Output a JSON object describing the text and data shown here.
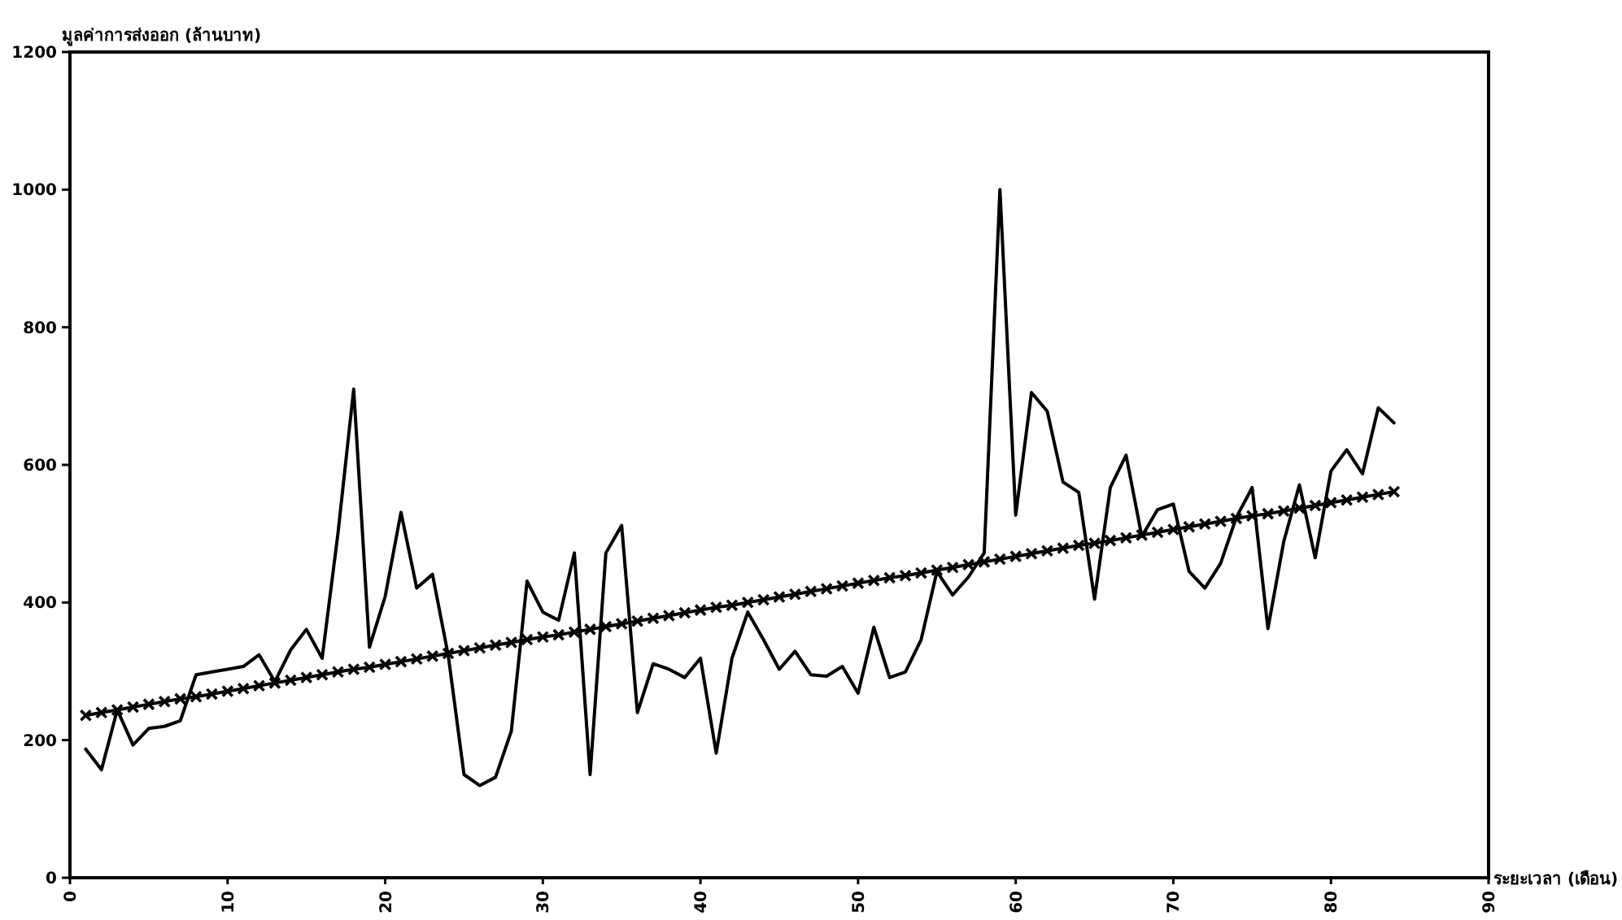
{
  "chart_data": {
    "type": "line",
    "xlabel": "ระยะเวลา (เดือน)",
    "ylabel": "มูลค่าการส่งออก (ล้านบาท)",
    "xlim": [
      0,
      90
    ],
    "xticks": [
      0,
      10,
      20,
      30,
      40,
      50,
      60,
      70,
      80,
      90
    ],
    "ylim": [
      0,
      1200
    ],
    "yticks": [
      0,
      200,
      400,
      600,
      800,
      1000,
      1200
    ],
    "grid": false,
    "series": [
      {
        "color": "#000000",
        "marker": "none",
        "x": [
          1,
          2,
          3,
          4,
          5,
          6,
          7,
          8,
          9,
          10,
          11,
          12,
          13,
          14,
          15,
          16,
          17,
          18,
          19,
          20,
          21,
          22,
          23,
          24,
          25,
          26,
          27,
          28,
          29,
          30,
          31,
          32,
          33,
          34,
          35,
          36,
          37,
          38,
          39,
          40,
          41,
          42,
          43,
          44,
          45,
          46,
          47,
          48,
          49,
          50,
          51,
          52,
          53,
          54,
          55,
          56,
          57,
          58,
          59,
          60,
          61,
          62,
          63,
          64,
          65,
          66,
          67,
          68,
          69,
          70,
          71,
          72,
          73,
          74,
          75,
          76,
          77,
          78,
          79,
          80,
          81,
          82,
          83,
          84
        ],
        "values": [
          187,
          157,
          244,
          193,
          217,
          220,
          228,
          295,
          299,
          303,
          307,
          324,
          285,
          331,
          361,
          319,
          500,
          710,
          335,
          409,
          531,
          421,
          441,
          323,
          150,
          134,
          146,
          213,
          431,
          386,
          374,
          472,
          150,
          472,
          512,
          240,
          311,
          303,
          291,
          319,
          181,
          319,
          386,
          346,
          303,
          329,
          295,
          293,
          307,
          268,
          364,
          291,
          299,
          346,
          445,
          411,
          437,
          472,
          1000,
          527,
          705,
          678,
          575,
          560,
          405,
          567,
          614,
          496,
          535,
          543,
          445,
          421,
          457,
          524,
          567,
          362,
          488,
          571,
          465,
          591,
          622,
          587,
          683,
          661
        ]
      },
      {
        "color": "#000000",
        "marker": "cross",
        "x": [
          1,
          2,
          3,
          4,
          5,
          6,
          7,
          8,
          9,
          10,
          11,
          12,
          13,
          14,
          15,
          16,
          17,
          18,
          19,
          20,
          21,
          22,
          23,
          24,
          25,
          26,
          27,
          28,
          29,
          30,
          31,
          32,
          33,
          34,
          35,
          36,
          37,
          38,
          39,
          40,
          41,
          42,
          43,
          44,
          45,
          46,
          47,
          48,
          49,
          50,
          51,
          52,
          53,
          54,
          55,
          56,
          57,
          58,
          59,
          60,
          61,
          62,
          63,
          64,
          65,
          66,
          67,
          68,
          69,
          70,
          71,
          72,
          73,
          74,
          75,
          76,
          77,
          78,
          79,
          80,
          81,
          82,
          83,
          84
        ],
        "values": [
          236,
          240,
          244,
          248,
          252,
          256,
          260,
          263,
          267,
          271,
          275,
          279,
          283,
          287,
          291,
          295,
          299,
          303,
          306,
          310,
          314,
          318,
          322,
          326,
          330,
          334,
          338,
          342,
          346,
          350,
          353,
          357,
          361,
          365,
          369,
          373,
          377,
          381,
          385,
          389,
          393,
          396,
          400,
          404,
          408,
          412,
          416,
          420,
          424,
          428,
          432,
          436,
          439,
          443,
          447,
          451,
          455,
          459,
          463,
          467,
          471,
          475,
          479,
          483,
          486,
          490,
          494,
          498,
          502,
          506,
          510,
          514,
          518,
          522,
          526,
          529,
          533,
          537,
          541,
          545,
          549,
          553,
          557,
          561
        ]
      }
    ]
  }
}
